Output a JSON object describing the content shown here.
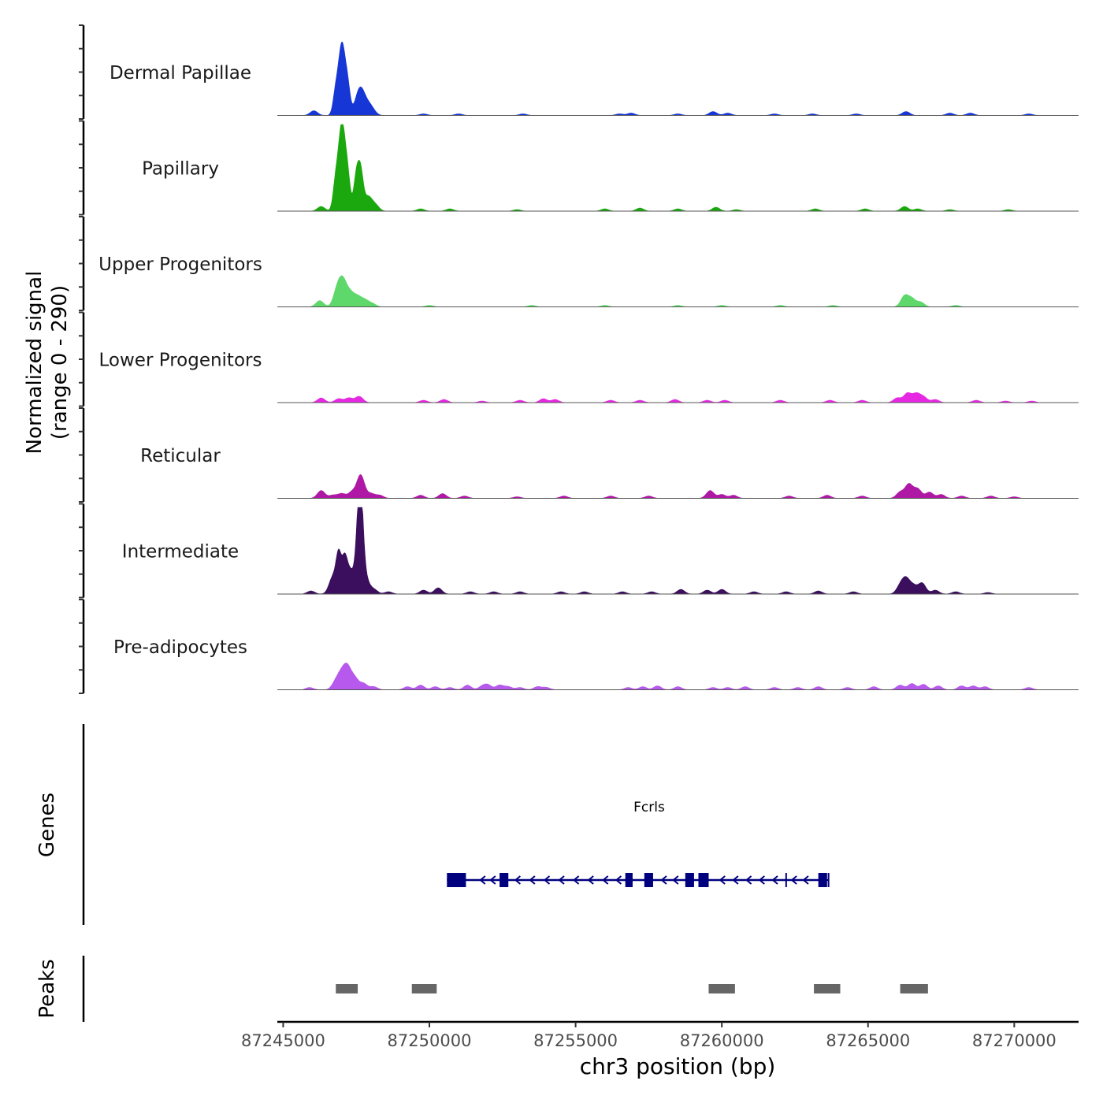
{
  "chart_data": {
    "type": "area",
    "title": "",
    "xlabel": "chr3 position (bp)",
    "ylabel_line1": "Normalized signal",
    "ylabel_line2": "(range 0 - 290)",
    "chromosome": "chr3",
    "signal_range": [
      0,
      290
    ],
    "region": [
      87244800,
      87272200
    ],
    "x_ticks": [
      87245000,
      87250000,
      87255000,
      87260000,
      87265000,
      87270000
    ],
    "x_tick_labels": [
      "87245000",
      "87250000",
      "87255000",
      "87260000",
      "87265000",
      "87270000"
    ],
    "tracks": [
      {
        "name": "Dermal Papillae",
        "color": "#1637d6",
        "peaks": [
          [
            87246050,
            6
          ],
          [
            87246800,
            32
          ],
          [
            87246950,
            48
          ],
          [
            87247050,
            56
          ],
          [
            87247200,
            40
          ],
          [
            87247550,
            20
          ],
          [
            87247700,
            22
          ],
          [
            87247900,
            10
          ],
          [
            87248050,
            6
          ],
          [
            87249800,
            2
          ],
          [
            87251000,
            2
          ],
          [
            87253200,
            2
          ],
          [
            87256500,
            2
          ],
          [
            87256900,
            3
          ],
          [
            87258500,
            2
          ],
          [
            87259700,
            5
          ],
          [
            87260200,
            3
          ],
          [
            87261800,
            2
          ],
          [
            87263100,
            2
          ],
          [
            87264600,
            2
          ],
          [
            87266300,
            5
          ],
          [
            87267800,
            3
          ],
          [
            87268500,
            3
          ],
          [
            87270500,
            2
          ]
        ]
      },
      {
        "name": "Papillary",
        "color": "#1aa80e",
        "peaks": [
          [
            87246300,
            6
          ],
          [
            87246800,
            40
          ],
          [
            87246950,
            58
          ],
          [
            87247050,
            70
          ],
          [
            87247200,
            48
          ],
          [
            87247500,
            44
          ],
          [
            87247650,
            48
          ],
          [
            87247900,
            18
          ],
          [
            87248150,
            8
          ],
          [
            87249700,
            3
          ],
          [
            87250700,
            3
          ],
          [
            87253000,
            2
          ],
          [
            87256000,
            3
          ],
          [
            87257200,
            4
          ],
          [
            87258500,
            3
          ],
          [
            87259800,
            5
          ],
          [
            87260500,
            2
          ],
          [
            87263200,
            3
          ],
          [
            87264900,
            3
          ],
          [
            87266250,
            6
          ],
          [
            87266700,
            3
          ],
          [
            87267800,
            2
          ],
          [
            87269800,
            2
          ]
        ]
      },
      {
        "name": "Upper Progenitors",
        "color": "#5ed86b",
        "peaks": [
          [
            87246250,
            8
          ],
          [
            87246850,
            22
          ],
          [
            87247050,
            30
          ],
          [
            87247300,
            16
          ],
          [
            87247550,
            12
          ],
          [
            87247800,
            8
          ],
          [
            87248050,
            4
          ],
          [
            87250000,
            2
          ],
          [
            87253500,
            2
          ],
          [
            87256000,
            2
          ],
          [
            87258500,
            2
          ],
          [
            87260000,
            2
          ],
          [
            87262000,
            2
          ],
          [
            87263800,
            2
          ],
          [
            87266250,
            14
          ],
          [
            87266500,
            10
          ],
          [
            87266800,
            6
          ],
          [
            87268000,
            2
          ]
        ]
      },
      {
        "name": "Lower Progenitors",
        "color": "#e628e3",
        "peaks": [
          [
            87246300,
            6
          ],
          [
            87246900,
            5
          ],
          [
            87247250,
            6
          ],
          [
            87247600,
            8
          ],
          [
            87249800,
            3
          ],
          [
            87250500,
            4
          ],
          [
            87251800,
            2
          ],
          [
            87253100,
            3
          ],
          [
            87253900,
            5
          ],
          [
            87254300,
            4
          ],
          [
            87256200,
            3
          ],
          [
            87257200,
            3
          ],
          [
            87258400,
            4
          ],
          [
            87259500,
            3
          ],
          [
            87260100,
            3
          ],
          [
            87262000,
            3
          ],
          [
            87263700,
            3
          ],
          [
            87264800,
            3
          ],
          [
            87266000,
            6
          ],
          [
            87266350,
            12
          ],
          [
            87266650,
            11
          ],
          [
            87266900,
            7
          ],
          [
            87267300,
            4
          ],
          [
            87268700,
            3
          ],
          [
            87269700,
            2
          ],
          [
            87270600,
            2
          ]
        ]
      },
      {
        "name": "Reticular",
        "color": "#ae18a5",
        "peaks": [
          [
            87246300,
            10
          ],
          [
            87246700,
            4
          ],
          [
            87247000,
            6
          ],
          [
            87247350,
            8
          ],
          [
            87247650,
            30
          ],
          [
            87248000,
            6
          ],
          [
            87248300,
            4
          ],
          [
            87249700,
            4
          ],
          [
            87250450,
            6
          ],
          [
            87251200,
            3
          ],
          [
            87253000,
            2
          ],
          [
            87254600,
            3
          ],
          [
            87256200,
            3
          ],
          [
            87257500,
            3
          ],
          [
            87259600,
            10
          ],
          [
            87260000,
            5
          ],
          [
            87260400,
            4
          ],
          [
            87262300,
            3
          ],
          [
            87263600,
            4
          ],
          [
            87264800,
            3
          ],
          [
            87266100,
            8
          ],
          [
            87266400,
            18
          ],
          [
            87266700,
            12
          ],
          [
            87267100,
            8
          ],
          [
            87267500,
            5
          ],
          [
            87268200,
            3
          ],
          [
            87269200,
            3
          ],
          [
            87270000,
            2
          ]
        ]
      },
      {
        "name": "Intermediate",
        "color": "#3b0f5d",
        "peaks": [
          [
            87245950,
            4
          ],
          [
            87246700,
            22
          ],
          [
            87246900,
            48
          ],
          [
            87247100,
            40
          ],
          [
            87247300,
            30
          ],
          [
            87247550,
            50
          ],
          [
            87247650,
            110
          ],
          [
            87247800,
            22
          ],
          [
            87248100,
            6
          ],
          [
            87248600,
            3
          ],
          [
            87249800,
            5
          ],
          [
            87250300,
            8
          ],
          [
            87251400,
            3
          ],
          [
            87252200,
            3
          ],
          [
            87253100,
            3
          ],
          [
            87254500,
            3
          ],
          [
            87255300,
            3
          ],
          [
            87256600,
            3
          ],
          [
            87257600,
            3
          ],
          [
            87258600,
            6
          ],
          [
            87259500,
            5
          ],
          [
            87260000,
            6
          ],
          [
            87261100,
            3
          ],
          [
            87262200,
            3
          ],
          [
            87263300,
            4
          ],
          [
            87264500,
            3
          ],
          [
            87266100,
            10
          ],
          [
            87266300,
            18
          ],
          [
            87266550,
            10
          ],
          [
            87266850,
            14
          ],
          [
            87267300,
            5
          ],
          [
            87268000,
            3
          ],
          [
            87269100,
            2
          ]
        ]
      },
      {
        "name": "Pre-adipocytes",
        "color": "#b659ec",
        "peaks": [
          [
            87245900,
            3
          ],
          [
            87246800,
            10
          ],
          [
            87247000,
            18
          ],
          [
            87247200,
            26
          ],
          [
            87247450,
            14
          ],
          [
            87247750,
            8
          ],
          [
            87248100,
            4
          ],
          [
            87249250,
            4
          ],
          [
            87249700,
            6
          ],
          [
            87250200,
            4
          ],
          [
            87250700,
            3
          ],
          [
            87251300,
            6
          ],
          [
            87251800,
            4
          ],
          [
            87252000,
            6
          ],
          [
            87252400,
            6
          ],
          [
            87252700,
            4
          ],
          [
            87253100,
            3
          ],
          [
            87253700,
            4
          ],
          [
            87254000,
            3
          ],
          [
            87256800,
            3
          ],
          [
            87257300,
            4
          ],
          [
            87257800,
            5
          ],
          [
            87258500,
            4
          ],
          [
            87259700,
            3
          ],
          [
            87260200,
            3
          ],
          [
            87260800,
            4
          ],
          [
            87261800,
            3
          ],
          [
            87262600,
            3
          ],
          [
            87263300,
            4
          ],
          [
            87264300,
            3
          ],
          [
            87265200,
            4
          ],
          [
            87266100,
            6
          ],
          [
            87266500,
            8
          ],
          [
            87266900,
            7
          ],
          [
            87267400,
            5
          ],
          [
            87268200,
            5
          ],
          [
            87268600,
            5
          ],
          [
            87269000,
            4
          ],
          [
            87270500,
            3
          ]
        ]
      }
    ],
    "genes": {
      "label": "Genes",
      "gene_name": "Fcrls",
      "strand": "-",
      "start": 87250600,
      "end": 87263650,
      "exons": [
        [
          87250600,
          87251250
        ],
        [
          87252400,
          87252700
        ],
        [
          87256700,
          87256950
        ],
        [
          87257350,
          87257650
        ],
        [
          87258750,
          87259050
        ],
        [
          87259200,
          87259550
        ],
        [
          87263300,
          87263600
        ]
      ],
      "arrows": [
        87251800,
        87252150,
        87253000,
        87253500,
        87254000,
        87254500,
        87255000,
        87255500,
        87256000,
        87256450,
        87258000,
        87258400,
        87260000,
        87260450,
        87260900,
        87261350,
        87261800,
        87262450,
        87262850
      ],
      "tick_marks": [
        87262200,
        87263450,
        87263650
      ]
    },
    "peaks_track": {
      "label": "Peaks",
      "regions": [
        [
          87246800,
          87247550
        ],
        [
          87249400,
          87250250
        ],
        [
          87259550,
          87260450
        ],
        [
          87263150,
          87264050
        ],
        [
          87266100,
          87267050
        ]
      ]
    }
  }
}
